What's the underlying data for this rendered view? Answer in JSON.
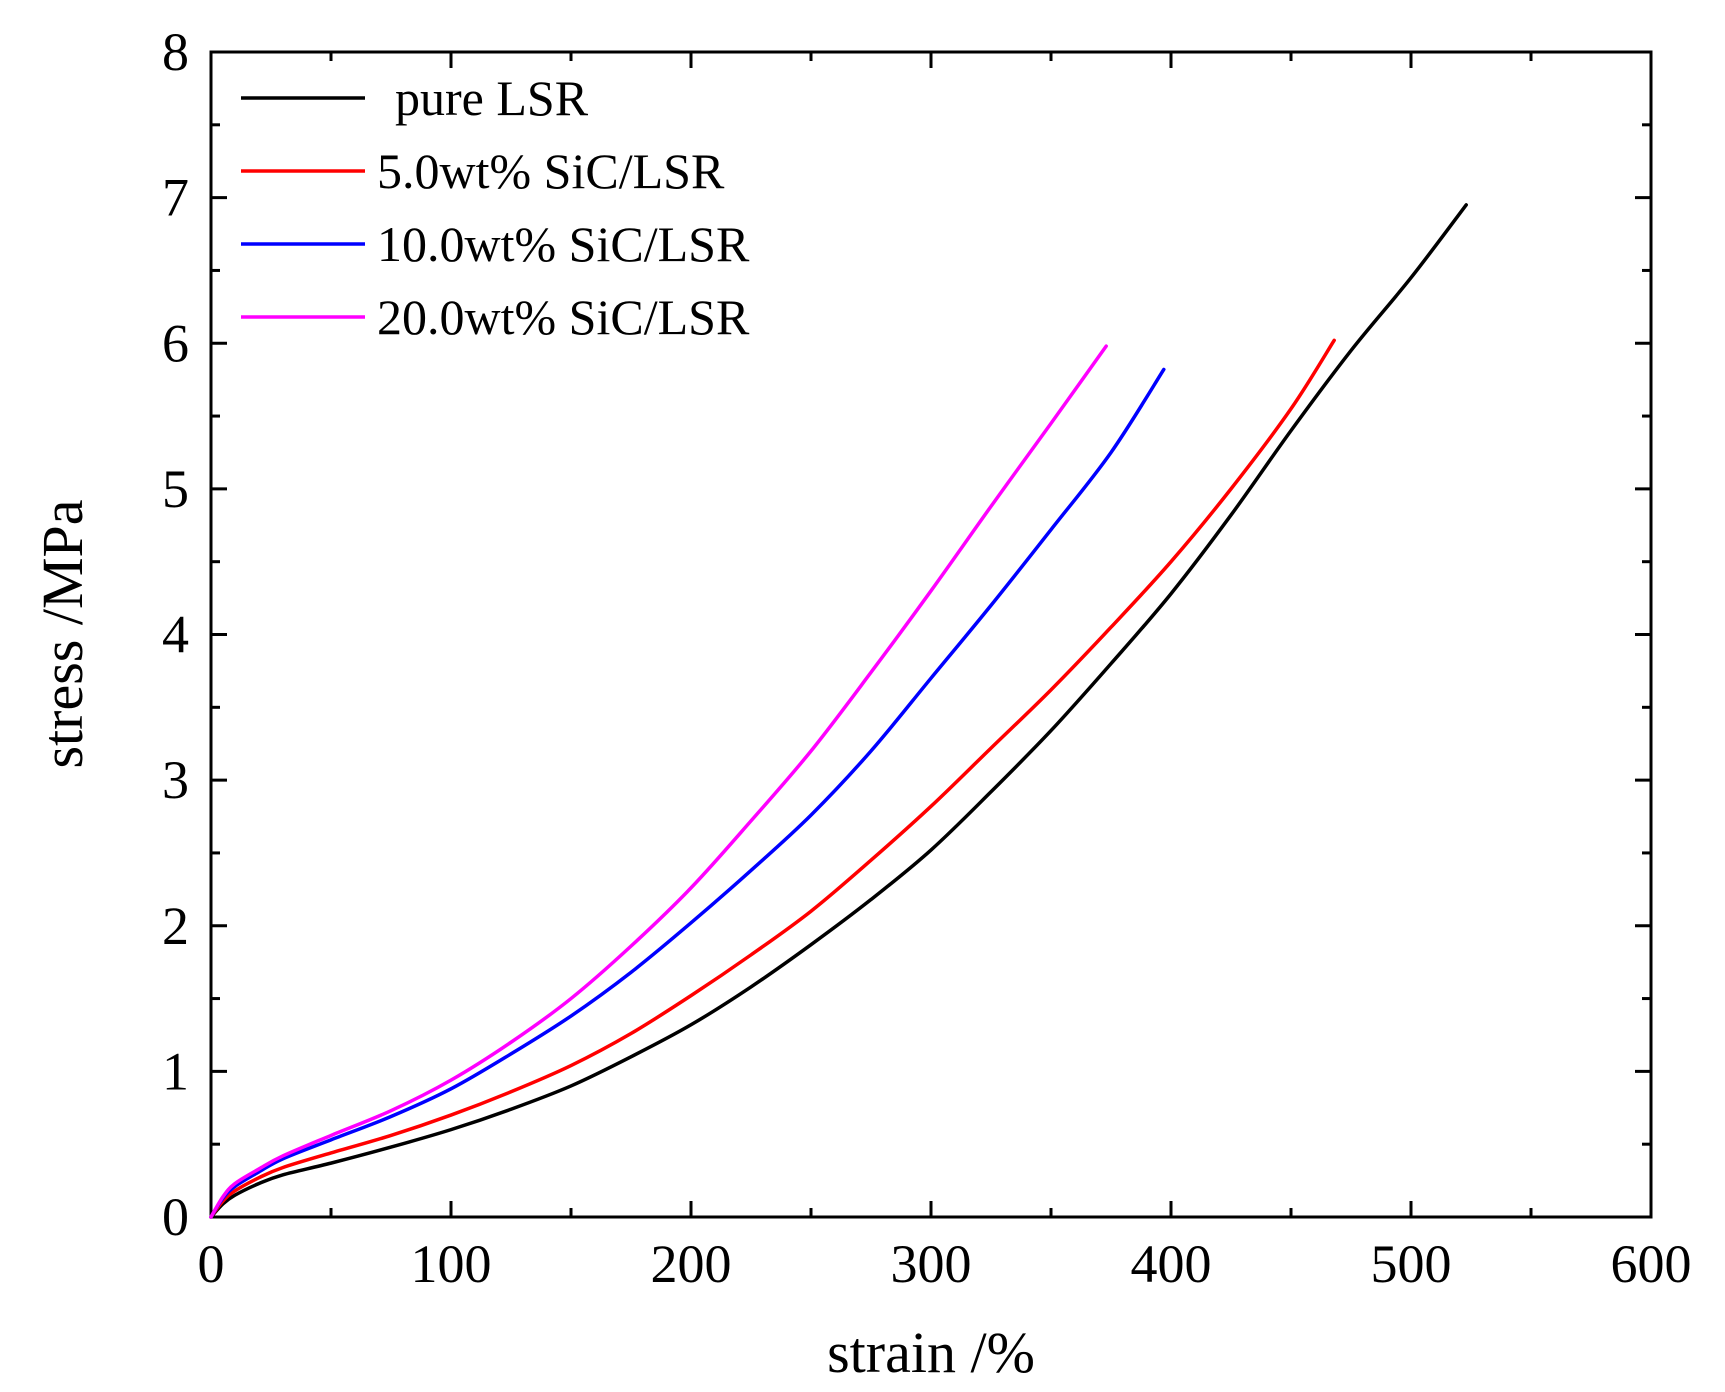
{
  "chart_data": {
    "type": "line",
    "title": "",
    "xlabel": "strain /%",
    "ylabel": "stress /MPa",
    "xlim": [
      0,
      600
    ],
    "ylim": [
      0,
      8
    ],
    "xticks": [
      0,
      100,
      200,
      300,
      400,
      500,
      600
    ],
    "yticks": [
      0,
      1,
      2,
      3,
      4,
      5,
      6,
      7,
      8
    ],
    "grid": false,
    "legend_position": "top-left",
    "series": [
      {
        "name": "pure LSR",
        "color": "#000000",
        "x": [
          0,
          5,
          10,
          20,
          30,
          50,
          75,
          100,
          125,
          150,
          175,
          200,
          225,
          250,
          275,
          300,
          325,
          350,
          375,
          400,
          425,
          450,
          475,
          500,
          523
        ],
        "y": [
          0,
          0.09,
          0.15,
          0.23,
          0.29,
          0.37,
          0.48,
          0.6,
          0.74,
          0.9,
          1.1,
          1.32,
          1.58,
          1.87,
          2.18,
          2.52,
          2.92,
          3.34,
          3.8,
          4.28,
          4.82,
          5.4,
          5.95,
          6.45,
          6.95
        ]
      },
      {
        "name": "5.0wt% SiC/LSR",
        "color": "#ff0000",
        "x": [
          0,
          5,
          10,
          20,
          30,
          50,
          75,
          100,
          125,
          150,
          175,
          200,
          225,
          250,
          275,
          300,
          325,
          350,
          375,
          400,
          425,
          450,
          468
        ],
        "y": [
          0,
          0.11,
          0.18,
          0.27,
          0.34,
          0.44,
          0.56,
          0.7,
          0.86,
          1.04,
          1.26,
          1.52,
          1.8,
          2.1,
          2.45,
          2.82,
          3.22,
          3.62,
          4.05,
          4.5,
          5.0,
          5.55,
          6.02
        ]
      },
      {
        "name": "10.0wt% SiC/LSR",
        "color": "#0000ff",
        "x": [
          0,
          5,
          10,
          20,
          30,
          50,
          75,
          100,
          125,
          150,
          175,
          200,
          225,
          250,
          275,
          300,
          325,
          350,
          375,
          397
        ],
        "y": [
          0,
          0.13,
          0.21,
          0.31,
          0.4,
          0.53,
          0.69,
          0.88,
          1.12,
          1.38,
          1.68,
          2.02,
          2.38,
          2.76,
          3.2,
          3.7,
          4.2,
          4.72,
          5.25,
          5.82
        ]
      },
      {
        "name": "20.0wt% SiC/LSR",
        "color": "#ff00ff",
        "x": [
          0,
          5,
          10,
          20,
          30,
          50,
          75,
          100,
          125,
          150,
          175,
          200,
          225,
          250,
          275,
          300,
          325,
          350,
          373
        ],
        "y": [
          0,
          0.14,
          0.23,
          0.33,
          0.42,
          0.56,
          0.73,
          0.94,
          1.2,
          1.5,
          1.86,
          2.26,
          2.72,
          3.2,
          3.74,
          4.3,
          4.88,
          5.45,
          5.98
        ]
      }
    ]
  }
}
